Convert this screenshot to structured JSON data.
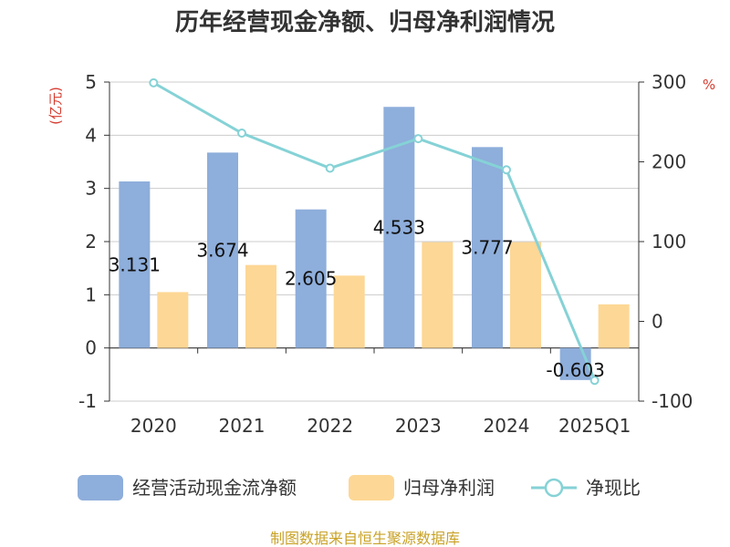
{
  "chart_data": {
    "type": "bar",
    "title": "历年经营现金净额、归母净利润情况",
    "categories": [
      "2020",
      "2021",
      "2022",
      "2023",
      "2024",
      "2025Q1"
    ],
    "series": [
      {
        "name": "经营活动现金流净额",
        "type": "bar",
        "axis": "left",
        "color": "#8eaedb",
        "values": [
          3.131,
          3.674,
          2.605,
          4.533,
          3.777,
          -0.603
        ],
        "labels": [
          "3.131",
          "3.674",
          "2.605",
          "4.533",
          "3.777",
          "-0.603"
        ]
      },
      {
        "name": "归母净利润",
        "type": "bar",
        "axis": "left",
        "color": "#fdd795",
        "values": [
          1.05,
          1.56,
          1.36,
          1.99,
          1.99,
          0.82
        ]
      },
      {
        "name": "净现比",
        "type": "line",
        "axis": "right",
        "color": "#85d2d6",
        "values": [
          299,
          236,
          192,
          229,
          190,
          -74
        ]
      }
    ],
    "y_left": {
      "unit": "(亿元)",
      "ylim": [
        -1,
        5
      ],
      "ticks": [
        "5",
        "4",
        "3",
        "2",
        "1",
        "0",
        "-1"
      ]
    },
    "y_right": {
      "unit": "%",
      "ylim": [
        -100,
        300
      ],
      "ticks": [
        "300",
        "200",
        "100",
        "0",
        "-100"
      ]
    },
    "grid": true,
    "legend_position": "bottom"
  },
  "source_text": "制图数据来自恒生聚源数据库"
}
